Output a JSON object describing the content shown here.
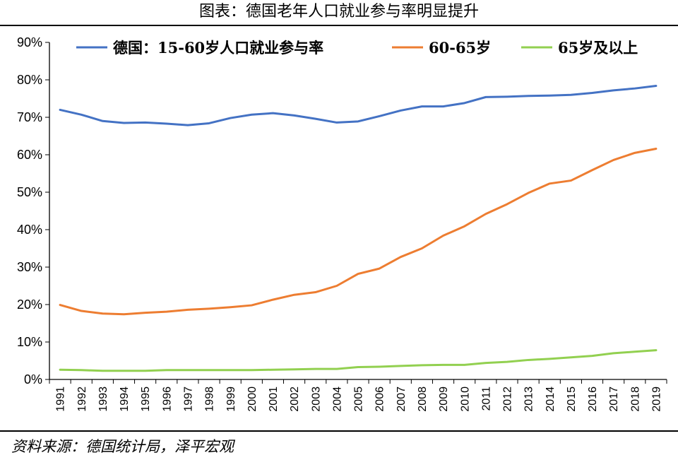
{
  "header": {
    "title": "图表：德国老年人口就业参与率明显提升"
  },
  "footer": {
    "source": "资料来源：德国统计局，泽平宏观"
  },
  "chart_data": {
    "type": "line",
    "x": [
      "1991",
      "1992",
      "1993",
      "1994",
      "1995",
      "1996",
      "1997",
      "1998",
      "1999",
      "2000",
      "2001",
      "2002",
      "2003",
      "2004",
      "2005",
      "2006",
      "2007",
      "2008",
      "2009",
      "2010",
      "2011",
      "2012",
      "2013",
      "2014",
      "2015",
      "2016",
      "2017",
      "2018",
      "2019"
    ],
    "y_ticks": [
      "0%",
      "10%",
      "20%",
      "30%",
      "40%",
      "50%",
      "60%",
      "70%",
      "80%",
      "90%"
    ],
    "ylim": [
      0,
      90
    ],
    "grid": false,
    "legend_position": "top",
    "series": [
      {
        "name": "德国：15-60岁人口就业参与率",
        "color": "#4472C4",
        "values": [
          72.0,
          70.7,
          69.0,
          68.5,
          68.6,
          68.3,
          67.9,
          68.4,
          69.8,
          70.7,
          71.1,
          70.5,
          69.6,
          68.6,
          68.9,
          70.3,
          71.8,
          72.9,
          72.9,
          73.8,
          75.4,
          75.5,
          75.7,
          75.8,
          76.0,
          76.5,
          77.2,
          77.7,
          78.4
        ]
      },
      {
        "name": "60-65岁",
        "color": "#ED7D31",
        "values": [
          19.9,
          18.3,
          17.6,
          17.4,
          17.8,
          18.1,
          18.6,
          18.9,
          19.3,
          19.8,
          21.3,
          22.6,
          23.3,
          25.0,
          28.2,
          29.6,
          32.7,
          35.0,
          38.4,
          40.9,
          44.2,
          46.8,
          49.8,
          52.3,
          53.1,
          55.9,
          58.6,
          60.5,
          61.6
        ]
      },
      {
        "name": "65岁及以上",
        "color": "#92D050",
        "values": [
          2.6,
          2.5,
          2.3,
          2.3,
          2.3,
          2.5,
          2.5,
          2.5,
          2.5,
          2.5,
          2.6,
          2.7,
          2.8,
          2.8,
          3.3,
          3.4,
          3.6,
          3.8,
          3.9,
          3.9,
          4.4,
          4.7,
          5.2,
          5.5,
          5.9,
          6.3,
          7.0,
          7.4,
          7.8
        ]
      }
    ]
  }
}
